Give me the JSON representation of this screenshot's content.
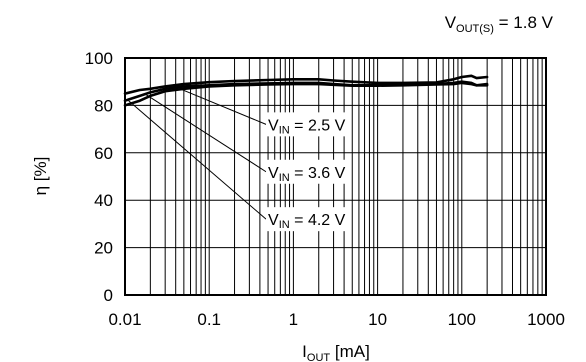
{
  "chart_data": {
    "type": "line",
    "condition_label": {
      "main": "V",
      "sub": "OUT(S)",
      "rest": " = 1.8 V"
    },
    "xlabel": {
      "main": "I",
      "sub": "OUT",
      "rest": " [mA]"
    },
    "ylabel": "η [%]",
    "x_scale": "log",
    "xlim": [
      0.01,
      1000
    ],
    "ylim": [
      0,
      100
    ],
    "grid": true,
    "x_ticks": [
      {
        "value": 0.01,
        "label": "0.01"
      },
      {
        "value": 0.1,
        "label": "0.1"
      },
      {
        "value": 1,
        "label": "1"
      },
      {
        "value": 10,
        "label": "10"
      },
      {
        "value": 100,
        "label": "100"
      },
      {
        "value": 1000,
        "label": "1000"
      }
    ],
    "y_ticks": [
      {
        "value": 0,
        "label": "0"
      },
      {
        "value": 20,
        "label": "20"
      },
      {
        "value": 40,
        "label": "40"
      },
      {
        "value": 60,
        "label": "60"
      },
      {
        "value": 80,
        "label": "80"
      },
      {
        "value": 100,
        "label": "100"
      }
    ],
    "series": [
      {
        "name": "VIN = 2.5 V",
        "label": {
          "main": "V",
          "sub": "IN",
          "rest": " = 2.5 V"
        },
        "label_at": {
          "x": 0.5,
          "y": 72
        },
        "leader_to": {
          "x": 0.045,
          "y": 87
        },
        "x": [
          0.01,
          0.015,
          0.02,
          0.03,
          0.05,
          0.1,
          0.2,
          0.5,
          1,
          2,
          3,
          5,
          10,
          20,
          50,
          80,
          100,
          130,
          150,
          200
        ],
        "y": [
          85,
          86.5,
          87,
          88,
          89,
          89.8,
          90.3,
          90.7,
          91,
          91,
          90.5,
          90,
          89.5,
          89.5,
          89.7,
          91,
          92,
          92.5,
          91.5,
          92
        ]
      },
      {
        "name": "VIN = 3.6 V",
        "label": {
          "main": "V",
          "sub": "IN",
          "rest": " = 3.6 V"
        },
        "label_at": {
          "x": 0.5,
          "y": 52
        },
        "leader_to": {
          "x": 0.017,
          "y": 85
        },
        "x": [
          0.01,
          0.015,
          0.02,
          0.03,
          0.05,
          0.1,
          0.2,
          0.5,
          1,
          2,
          3,
          5,
          10,
          20,
          50,
          80,
          100,
          130,
          150,
          200
        ],
        "y": [
          82,
          84,
          85.5,
          87,
          88,
          88.5,
          89,
          89.3,
          89.5,
          89.5,
          89,
          88.5,
          88.5,
          88.8,
          89,
          89.5,
          90,
          89.5,
          88.5,
          89
        ]
      },
      {
        "name": "VIN = 4.2 V",
        "label": {
          "main": "V",
          "sub": "IN",
          "rest": " = 4.2 V"
        },
        "label_at": {
          "x": 0.5,
          "y": 32
        },
        "leader_to": {
          "x": 0.011,
          "y": 82
        },
        "x": [
          0.01,
          0.015,
          0.02,
          0.03,
          0.05,
          0.1,
          0.2,
          0.5,
          1,
          2,
          3,
          5,
          10,
          20,
          50,
          80,
          100,
          130,
          150,
          200
        ],
        "y": [
          80,
          82,
          84,
          86,
          87,
          88,
          88.5,
          88.8,
          89,
          89,
          88.7,
          88.3,
          88.3,
          88.5,
          88.8,
          89,
          89.5,
          89,
          88.5,
          88.5
        ]
      }
    ]
  }
}
